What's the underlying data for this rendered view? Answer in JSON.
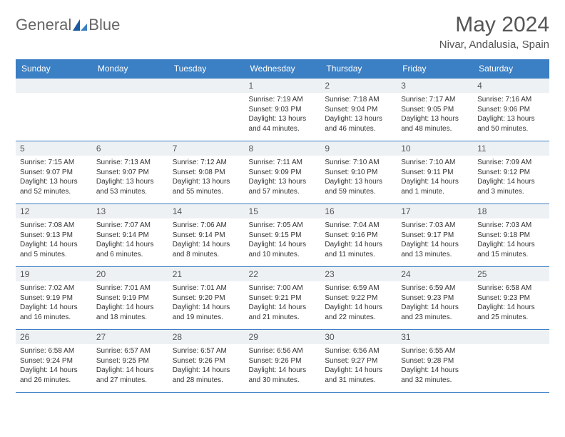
{
  "logo": {
    "word1": "General",
    "word2": "Blue"
  },
  "title": "May 2024",
  "location": "Nivar, Andalusia, Spain",
  "colors": {
    "header_bg": "#3b7fc4",
    "header_text": "#ffffff",
    "row_border": "#3b7fc4",
    "daynum_bg": "#eef1f4",
    "text": "#333333",
    "title_text": "#555555"
  },
  "dow": [
    "Sunday",
    "Monday",
    "Tuesday",
    "Wednesday",
    "Thursday",
    "Friday",
    "Saturday"
  ],
  "weeks": [
    [
      {
        "n": "",
        "sr": "",
        "ss": "",
        "d1": "",
        "d2": ""
      },
      {
        "n": "",
        "sr": "",
        "ss": "",
        "d1": "",
        "d2": ""
      },
      {
        "n": "",
        "sr": "",
        "ss": "",
        "d1": "",
        "d2": ""
      },
      {
        "n": "1",
        "sr": "Sunrise: 7:19 AM",
        "ss": "Sunset: 9:03 PM",
        "d1": "Daylight: 13 hours",
        "d2": "and 44 minutes."
      },
      {
        "n": "2",
        "sr": "Sunrise: 7:18 AM",
        "ss": "Sunset: 9:04 PM",
        "d1": "Daylight: 13 hours",
        "d2": "and 46 minutes."
      },
      {
        "n": "3",
        "sr": "Sunrise: 7:17 AM",
        "ss": "Sunset: 9:05 PM",
        "d1": "Daylight: 13 hours",
        "d2": "and 48 minutes."
      },
      {
        "n": "4",
        "sr": "Sunrise: 7:16 AM",
        "ss": "Sunset: 9:06 PM",
        "d1": "Daylight: 13 hours",
        "d2": "and 50 minutes."
      }
    ],
    [
      {
        "n": "5",
        "sr": "Sunrise: 7:15 AM",
        "ss": "Sunset: 9:07 PM",
        "d1": "Daylight: 13 hours",
        "d2": "and 52 minutes."
      },
      {
        "n": "6",
        "sr": "Sunrise: 7:13 AM",
        "ss": "Sunset: 9:07 PM",
        "d1": "Daylight: 13 hours",
        "d2": "and 53 minutes."
      },
      {
        "n": "7",
        "sr": "Sunrise: 7:12 AM",
        "ss": "Sunset: 9:08 PM",
        "d1": "Daylight: 13 hours",
        "d2": "and 55 minutes."
      },
      {
        "n": "8",
        "sr": "Sunrise: 7:11 AM",
        "ss": "Sunset: 9:09 PM",
        "d1": "Daylight: 13 hours",
        "d2": "and 57 minutes."
      },
      {
        "n": "9",
        "sr": "Sunrise: 7:10 AM",
        "ss": "Sunset: 9:10 PM",
        "d1": "Daylight: 13 hours",
        "d2": "and 59 minutes."
      },
      {
        "n": "10",
        "sr": "Sunrise: 7:10 AM",
        "ss": "Sunset: 9:11 PM",
        "d1": "Daylight: 14 hours",
        "d2": "and 1 minute."
      },
      {
        "n": "11",
        "sr": "Sunrise: 7:09 AM",
        "ss": "Sunset: 9:12 PM",
        "d1": "Daylight: 14 hours",
        "d2": "and 3 minutes."
      }
    ],
    [
      {
        "n": "12",
        "sr": "Sunrise: 7:08 AM",
        "ss": "Sunset: 9:13 PM",
        "d1": "Daylight: 14 hours",
        "d2": "and 5 minutes."
      },
      {
        "n": "13",
        "sr": "Sunrise: 7:07 AM",
        "ss": "Sunset: 9:14 PM",
        "d1": "Daylight: 14 hours",
        "d2": "and 6 minutes."
      },
      {
        "n": "14",
        "sr": "Sunrise: 7:06 AM",
        "ss": "Sunset: 9:14 PM",
        "d1": "Daylight: 14 hours",
        "d2": "and 8 minutes."
      },
      {
        "n": "15",
        "sr": "Sunrise: 7:05 AM",
        "ss": "Sunset: 9:15 PM",
        "d1": "Daylight: 14 hours",
        "d2": "and 10 minutes."
      },
      {
        "n": "16",
        "sr": "Sunrise: 7:04 AM",
        "ss": "Sunset: 9:16 PM",
        "d1": "Daylight: 14 hours",
        "d2": "and 11 minutes."
      },
      {
        "n": "17",
        "sr": "Sunrise: 7:03 AM",
        "ss": "Sunset: 9:17 PM",
        "d1": "Daylight: 14 hours",
        "d2": "and 13 minutes."
      },
      {
        "n": "18",
        "sr": "Sunrise: 7:03 AM",
        "ss": "Sunset: 9:18 PM",
        "d1": "Daylight: 14 hours",
        "d2": "and 15 minutes."
      }
    ],
    [
      {
        "n": "19",
        "sr": "Sunrise: 7:02 AM",
        "ss": "Sunset: 9:19 PM",
        "d1": "Daylight: 14 hours",
        "d2": "and 16 minutes."
      },
      {
        "n": "20",
        "sr": "Sunrise: 7:01 AM",
        "ss": "Sunset: 9:19 PM",
        "d1": "Daylight: 14 hours",
        "d2": "and 18 minutes."
      },
      {
        "n": "21",
        "sr": "Sunrise: 7:01 AM",
        "ss": "Sunset: 9:20 PM",
        "d1": "Daylight: 14 hours",
        "d2": "and 19 minutes."
      },
      {
        "n": "22",
        "sr": "Sunrise: 7:00 AM",
        "ss": "Sunset: 9:21 PM",
        "d1": "Daylight: 14 hours",
        "d2": "and 21 minutes."
      },
      {
        "n": "23",
        "sr": "Sunrise: 6:59 AM",
        "ss": "Sunset: 9:22 PM",
        "d1": "Daylight: 14 hours",
        "d2": "and 22 minutes."
      },
      {
        "n": "24",
        "sr": "Sunrise: 6:59 AM",
        "ss": "Sunset: 9:23 PM",
        "d1": "Daylight: 14 hours",
        "d2": "and 23 minutes."
      },
      {
        "n": "25",
        "sr": "Sunrise: 6:58 AM",
        "ss": "Sunset: 9:23 PM",
        "d1": "Daylight: 14 hours",
        "d2": "and 25 minutes."
      }
    ],
    [
      {
        "n": "26",
        "sr": "Sunrise: 6:58 AM",
        "ss": "Sunset: 9:24 PM",
        "d1": "Daylight: 14 hours",
        "d2": "and 26 minutes."
      },
      {
        "n": "27",
        "sr": "Sunrise: 6:57 AM",
        "ss": "Sunset: 9:25 PM",
        "d1": "Daylight: 14 hours",
        "d2": "and 27 minutes."
      },
      {
        "n": "28",
        "sr": "Sunrise: 6:57 AM",
        "ss": "Sunset: 9:26 PM",
        "d1": "Daylight: 14 hours",
        "d2": "and 28 minutes."
      },
      {
        "n": "29",
        "sr": "Sunrise: 6:56 AM",
        "ss": "Sunset: 9:26 PM",
        "d1": "Daylight: 14 hours",
        "d2": "and 30 minutes."
      },
      {
        "n": "30",
        "sr": "Sunrise: 6:56 AM",
        "ss": "Sunset: 9:27 PM",
        "d1": "Daylight: 14 hours",
        "d2": "and 31 minutes."
      },
      {
        "n": "31",
        "sr": "Sunrise: 6:55 AM",
        "ss": "Sunset: 9:28 PM",
        "d1": "Daylight: 14 hours",
        "d2": "and 32 minutes."
      },
      {
        "n": "",
        "sr": "",
        "ss": "",
        "d1": "",
        "d2": ""
      }
    ]
  ]
}
